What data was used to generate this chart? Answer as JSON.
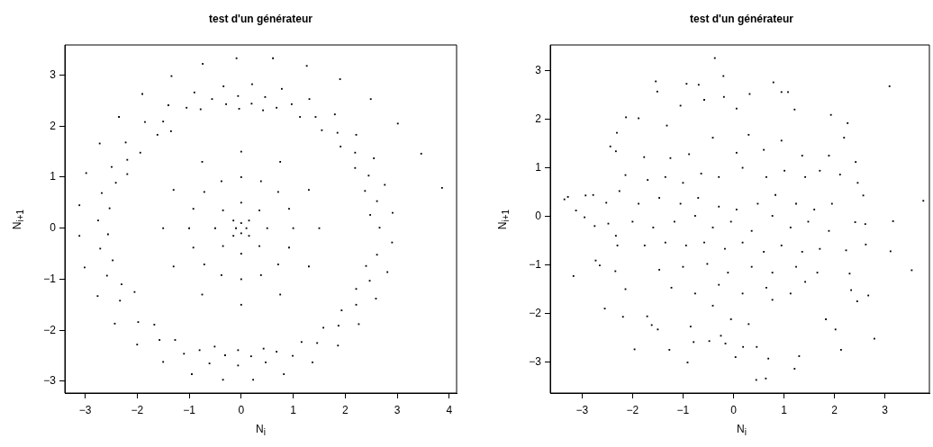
{
  "chart_data": [
    {
      "type": "scatter",
      "title": "test d'un générateur",
      "xlabel": "N$_{i}$",
      "ylabel": "N$_{i+1}$",
      "xlim": [
        -3.39,
        4.14
      ],
      "ylim": [
        -3.23,
        3.59
      ],
      "xticks": [
        -3,
        -2,
        -1,
        0,
        1,
        2,
        3,
        4
      ],
      "yticks": [
        -3,
        -2,
        -1,
        0,
        1,
        2,
        3
      ],
      "marker": "square",
      "series": [
        {
          "color": "#000000",
          "x": [
            -0.09,
            0.61,
            -0.74,
            1.26,
            -1.34,
            1.9,
            -0.34,
            0.21,
            0.78,
            -1.9,
            -0.9,
            -0.06,
            0.46,
            -0.56,
            1.31,
            2.49,
            -1.4,
            -0.29,
            0.2,
            0.97,
            -1.05,
            -0.78,
            -0.04,
            0.42,
            0.68,
            -2.35,
            1.43,
            1.8,
            1.13,
            3.01,
            -1.85,
            -1.5,
            2.21,
            1.85,
            1.55,
            -1.61,
            -1.35,
            -2.22,
            -2.72,
            3.46,
            2.19,
            1.91,
            -1.94,
            -2.19,
            2.55,
            -2.49,
            -2.98,
            -2.19,
            2.19,
            2.45,
            -2.41,
            2.76,
            3.86,
            -2.68,
            2.38,
            -3.11,
            -2.53,
            2.61,
            2.48,
            -2.75,
            2.91,
            2.66,
            -3.11,
            -2.56,
            2.9,
            2.61,
            -2.71,
            -2.47,
            -3.01,
            2.4,
            2.81,
            -2.58,
            2.47,
            -2.3,
            2.21,
            -2.76,
            -2.33,
            2.59,
            2.21,
            -2.05,
            1.93,
            -2.43,
            2.26,
            1.87,
            -1.98,
            -1.67,
            1.58,
            -2.0,
            1.86,
            -1.57,
            1.16,
            -1.27,
            1.46,
            -0.8,
            -1.1,
            -0.51,
            -0.06,
            0.43,
            0.68,
            0.99,
            0.19,
            -0.31,
            -1.5,
            -0.61,
            0.47,
            1.37,
            -0.06,
            -0.95,
            0.82,
            -0.35,
            0.23,
            0,
            0.1,
            0,
            -0.1,
            0.15,
            -0.15,
            -0.15,
            0.15,
            0.5,
            0.35,
            0,
            -0.35,
            -0.5,
            -0.35,
            0,
            0.35,
            1,
            0.71,
            0,
            -0.71,
            -1,
            -0.71,
            0,
            0.71,
            0.92,
            0.38,
            -0.38,
            -0.92,
            -0.92,
            -0.38,
            0.38,
            0.92,
            1.5,
            1.3,
            0.75,
            0,
            -0.75,
            -1.3,
            -1.5,
            -1.3,
            -0.75,
            0,
            0.75,
            1.3
          ],
          "values": [
            3.33,
            3.33,
            3.22,
            3.18,
            2.98,
            2.92,
            2.78,
            2.82,
            2.73,
            2.63,
            2.66,
            2.59,
            2.57,
            2.53,
            2.53,
            2.53,
            2.41,
            2.43,
            2.44,
            2.43,
            2.36,
            2.33,
            2.34,
            2.31,
            2.36,
            2.18,
            2.18,
            2.23,
            2.18,
            2.05,
            2.08,
            2.09,
            1.83,
            1.87,
            1.92,
            1.83,
            1.9,
            1.68,
            1.66,
            1.46,
            1.48,
            1.6,
            1.48,
            1.34,
            1.37,
            1.2,
            1.08,
            1.06,
            1.18,
            1.03,
            0.89,
            0.85,
            0.79,
            0.69,
            0.73,
            0.45,
            0.39,
            0.53,
            0.26,
            0.15,
            0.3,
            0.01,
            -0.15,
            -0.12,
            -0.28,
            -0.52,
            -0.4,
            -0.63,
            -0.77,
            -0.74,
            -0.86,
            -0.93,
            -1.03,
            -1.1,
            -1.19,
            -1.33,
            -1.42,
            -1.38,
            -1.5,
            -1.25,
            -1.61,
            -1.87,
            -1.88,
            -1.91,
            -1.84,
            -1.89,
            -1.95,
            -2.28,
            -2.3,
            -2.19,
            -2.23,
            -2.19,
            -2.25,
            -2.39,
            -2.46,
            -2.32,
            -2.39,
            -2.36,
            -2.42,
            -2.5,
            -2.51,
            -2.49,
            -2.62,
            -2.65,
            -2.63,
            -2.63,
            -2.69,
            -2.86,
            -2.86,
            -2.97,
            -2.97,
            0.1,
            0,
            -0.1,
            0,
            0.15,
            0.15,
            -0.15,
            -0.15,
            0,
            0.35,
            0.5,
            0.35,
            0,
            -0.35,
            -0.5,
            -0.35,
            0,
            0.71,
            1,
            0.71,
            0,
            -0.71,
            -1,
            -0.71,
            0.38,
            0.92,
            0.92,
            0.38,
            -0.38,
            -0.92,
            -0.92,
            -0.38,
            0,
            0.75,
            1.3,
            1.5,
            1.3,
            0.75,
            0,
            -0.75,
            -1.3,
            -1.5,
            -1.3,
            -0.75
          ]
        }
      ]
    },
    {
      "type": "scatter",
      "title": "test d'un générateur",
      "xlabel": "N$_{i}$",
      "ylabel": "N$_{i+1}$",
      "xlim": [
        -3.63,
        3.88
      ],
      "ylim": [
        -3.64,
        3.53
      ],
      "xticks": [
        -3,
        -2,
        -1,
        0,
        1,
        2,
        3
      ],
      "yticks": [
        -3,
        -2,
        -1,
        0,
        1,
        2,
        3
      ],
      "marker": "square",
      "series": [
        {
          "color": "#000000",
          "x": [
            -0.37,
            -0.2,
            -1.54,
            0.79,
            -0.93,
            -0.69,
            3.09,
            -1.51,
            0.95,
            1.08,
            0.32,
            -0.19,
            -0.58,
            -1.05,
            0.06,
            1.21,
            -2.13,
            -1.88,
            1.93,
            2.26,
            -1.32,
            -2.31,
            2.19,
            -2.44,
            -2.33,
            -1.77,
            1.89,
            2.42,
            -2.14,
            2.11,
            2.46,
            -2.26,
            -2.93,
            -2.78,
            -3.35,
            -3.28,
            -2.52,
            -3.12,
            2.57,
            3.76,
            -2.95,
            -2.75,
            -2.48,
            2.41,
            2.61,
            3.16,
            -2.33,
            -2.3,
            2.62,
            2.23,
            3.11,
            -2.73,
            -2.65,
            3.53,
            -3.17,
            -2.34,
            2.3,
            -2.14,
            2.33,
            2.45,
            2.67,
            -2.55,
            -2.19,
            -1.71,
            -1.62,
            -1.5,
            1.83,
            2.02,
            -1.96,
            2.79,
            2.13,
            -1.27,
            -0.79,
            -0.48,
            -0.25,
            -0.16,
            0.19,
            0.04,
            0.46,
            0.69,
            1.3,
            -0.91,
            1.21,
            0.64,
            0.45,
            0.3,
            -0.05,
            -0.85,
            -1.25,
            -0.88,
            -0.41,
            0.06,
            0.3,
            0.6,
            0.95,
            1.36,
            -1.7,
            -1.35,
            -1.0,
            -0.64,
            -0.29,
            0.18,
            0.65,
            1.01,
            1.42,
            1.71,
            -1.88,
            -1.47,
            -1.05,
            -0.7,
            -0.29,
            0.06,
            0.48,
            0.83,
            1.24,
            1.6,
            1.95,
            -2.0,
            -1.59,
            -1.17,
            -0.76,
            -0.41,
            -0.05,
            0.36,
            0.77,
            1.13,
            1.48,
            1.89,
            -1.76,
            -1.35,
            -0.94,
            -0.58,
            -0.17,
            0.18,
            0.6,
            0.95,
            1.36,
            1.71,
            -1.47,
            -1.0,
            -0.52,
            -0.11,
            0.36,
            0.77,
            1.24,
            1.66,
            -1.23,
            -0.76,
            -0.29,
            0.18,
            0.65,
            1.13,
            1.42,
            -0.41,
            0.77
          ],
          "values": [
            3.26,
            2.89,
            2.78,
            2.76,
            2.73,
            2.71,
            2.68,
            2.57,
            2.56,
            2.56,
            2.52,
            2.46,
            2.4,
            2.28,
            2.22,
            2.2,
            2.04,
            2.02,
            2.09,
            1.92,
            1.87,
            1.72,
            1.62,
            1.44,
            1.34,
            1.22,
            1.25,
            1.12,
            0.85,
            0.86,
            0.69,
            0.52,
            0.43,
            0.44,
            0.35,
            0.4,
            0.28,
            0.12,
            0.43,
            0.32,
            -0.02,
            -0.2,
            -0.15,
            -0.12,
            -0.16,
            -0.1,
            -0.4,
            -0.6,
            -0.58,
            -0.7,
            -0.72,
            -0.91,
            -1.01,
            -1.11,
            -1.23,
            -1.13,
            -1.18,
            -1.5,
            -1.52,
            -1.75,
            -1.63,
            -1.9,
            -2.07,
            -2.06,
            -2.24,
            -2.33,
            -2.12,
            -2.33,
            -2.74,
            -2.52,
            -2.75,
            -2.75,
            -2.59,
            -2.57,
            -2.46,
            -2.62,
            -2.69,
            -2.9,
            -2.69,
            -2.93,
            -2.88,
            -3.01,
            -3.14,
            -3.34,
            -3.37,
            -2.22,
            -2.12,
            -2.27,
            1.2,
            1.28,
            1.62,
            1.31,
            1.68,
            1.37,
            1.56,
            1.25,
            0.75,
            0.81,
            0.69,
            0.88,
            0.81,
            1.0,
            0.81,
            0.94,
            0.81,
            0.94,
            0.26,
            0.38,
            0.26,
            0.38,
            0.2,
            0.14,
            0.26,
            0.44,
            0.26,
            0.14,
            0.26,
            -0.11,
            -0.23,
            -0.11,
            0.01,
            -0.23,
            -0.11,
            -0.3,
            0.01,
            -0.23,
            -0.11,
            -0.3,
            -0.6,
            -0.54,
            -0.6,
            -0.54,
            -0.67,
            -0.54,
            -0.73,
            -0.6,
            -0.73,
            -0.67,
            -1.1,
            -1.04,
            -0.98,
            -1.16,
            -1.04,
            -1.16,
            -1.04,
            -1.16,
            -1.47,
            -1.59,
            -1.41,
            -1.59,
            -1.47,
            -1.59,
            -1.35,
            -1.84,
            -1.72
          ]
        }
      ]
    }
  ]
}
